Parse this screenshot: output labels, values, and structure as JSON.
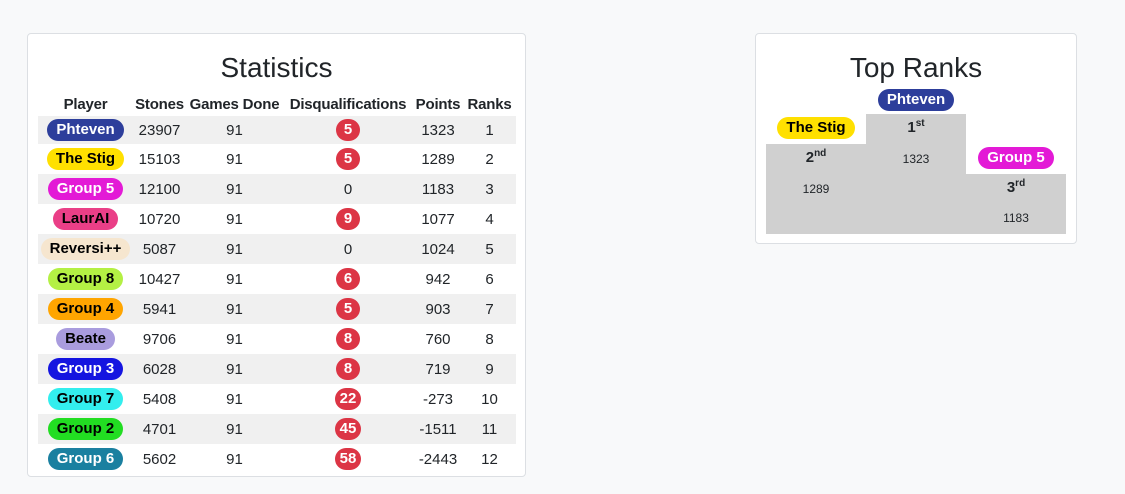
{
  "statistics": {
    "title": "Statistics",
    "headers": [
      "Player",
      "Stones",
      "Games Done",
      "Disqualifications",
      "Points",
      "Ranks"
    ],
    "rows": [
      {
        "player": "Phteven",
        "bg": "#2d3e9b",
        "fg": "#ffffff",
        "stones": "23907",
        "games": "91",
        "disq": "5",
        "disq_badge": true,
        "points": "1323",
        "rank": "1"
      },
      {
        "player": "The Stig",
        "bg": "#ffe000",
        "fg": "#000000",
        "stones": "15103",
        "games": "91",
        "disq": "5",
        "disq_badge": true,
        "points": "1289",
        "rank": "2"
      },
      {
        "player": "Group 5",
        "bg": "#e31ad6",
        "fg": "#ffffff",
        "stones": "12100",
        "games": "91",
        "disq": "0",
        "disq_badge": false,
        "points": "1183",
        "rank": "3"
      },
      {
        "player": "LaurAI",
        "bg": "#ea3f87",
        "fg": "#000000",
        "stones": "10720",
        "games": "91",
        "disq": "9",
        "disq_badge": true,
        "points": "1077",
        "rank": "4"
      },
      {
        "player": "Reversi++",
        "bg": "#f6e6cf",
        "fg": "#000000",
        "stones": "5087",
        "games": "91",
        "disq": "0",
        "disq_badge": false,
        "points": "1024",
        "rank": "5"
      },
      {
        "player": "Group 8",
        "bg": "#b4f044",
        "fg": "#000000",
        "stones": "10427",
        "games": "91",
        "disq": "6",
        "disq_badge": true,
        "points": "942",
        "rank": "6"
      },
      {
        "player": "Group 4",
        "bg": "#ffa500",
        "fg": "#000000",
        "stones": "5941",
        "games": "91",
        "disq": "5",
        "disq_badge": true,
        "points": "903",
        "rank": "7"
      },
      {
        "player": "Beate",
        "bg": "#a99cde",
        "fg": "#000000",
        "stones": "9706",
        "games": "91",
        "disq": "8",
        "disq_badge": true,
        "points": "760",
        "rank": "8"
      },
      {
        "player": "Group 3",
        "bg": "#1515e0",
        "fg": "#ffffff",
        "stones": "6028",
        "games": "91",
        "disq": "8",
        "disq_badge": true,
        "points": "719",
        "rank": "9"
      },
      {
        "player": "Group 7",
        "bg": "#33eeee",
        "fg": "#000000",
        "stones": "5408",
        "games": "91",
        "disq": "22",
        "disq_badge": true,
        "points": "-273",
        "rank": "10"
      },
      {
        "player": "Group 2",
        "bg": "#22dd22",
        "fg": "#000000",
        "stones": "4701",
        "games": "91",
        "disq": "45",
        "disq_badge": true,
        "points": "-1511",
        "rank": "11"
      },
      {
        "player": "Group 6",
        "bg": "#1a80a0",
        "fg": "#ffffff",
        "stones": "5602",
        "games": "91",
        "disq": "58",
        "disq_badge": true,
        "points": "-2443",
        "rank": "12"
      }
    ]
  },
  "top_ranks": {
    "title": "Top Ranks",
    "first": {
      "name": "Phteven",
      "bg": "#2d3e9b",
      "fg": "#ffffff",
      "place": "1",
      "suffix": "st",
      "points": "1323"
    },
    "second": {
      "name": "The Stig",
      "bg": "#ffe000",
      "fg": "#000000",
      "place": "2",
      "suffix": "nd",
      "points": "1289"
    },
    "third": {
      "name": "Group 5",
      "bg": "#e31ad6",
      "fg": "#ffffff",
      "place": "3",
      "suffix": "rd",
      "points": "1183"
    }
  },
  "colors": {
    "disqualification_badge": "#dc3545",
    "podium": "#d0d0d0"
  }
}
